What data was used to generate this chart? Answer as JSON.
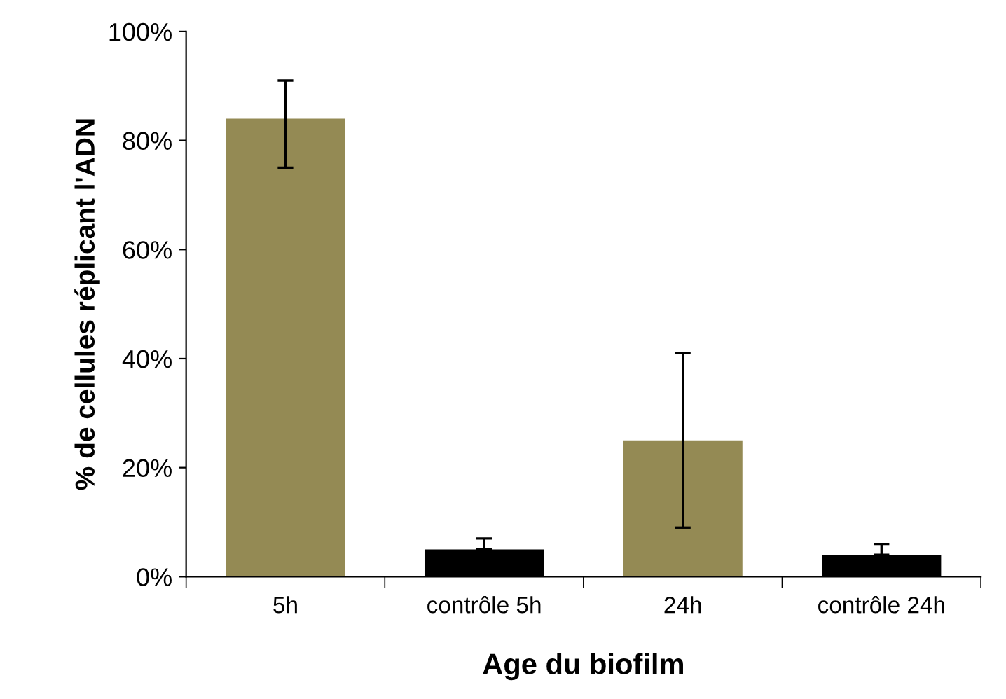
{
  "chart_data": {
    "type": "bar",
    "xlabel": "Age du biofilm",
    "ylabel": "% de cellules réplicant l'ADN",
    "categories": [
      "5h",
      "contrôle 5h",
      "24h",
      "contrôle 24h"
    ],
    "values": [
      84,
      5,
      25,
      4
    ],
    "colors": [
      "#948a54",
      "#000000",
      "#948a54",
      "#000000"
    ],
    "errors": [
      [
        75,
        91
      ],
      [
        5,
        7
      ],
      [
        9,
        41
      ],
      [
        4,
        6
      ]
    ],
    "ylim": [
      0,
      100
    ],
    "yticks": [
      {
        "value": 0,
        "label": "0%"
      },
      {
        "value": 20,
        "label": "20%"
      },
      {
        "value": 40,
        "label": "40%"
      },
      {
        "value": 60,
        "label": "60%"
      },
      {
        "value": 80,
        "label": "80%"
      },
      {
        "value": 100,
        "label": "100%"
      }
    ],
    "grid": false
  }
}
